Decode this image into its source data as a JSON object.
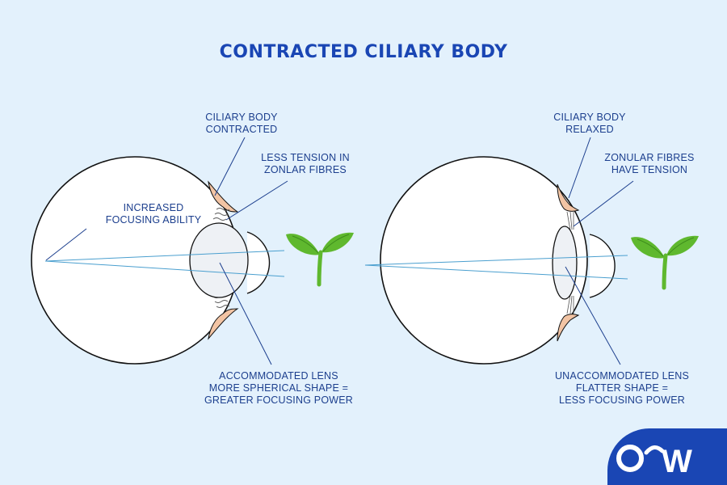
{
  "title": "CONTRACTED CILIARY BODY",
  "left_eye": {
    "ciliary_label": [
      "CILIARY BODY",
      "CONTRACTED"
    ],
    "zonular_label": [
      "LESS TENSION IN",
      "ZONLAR FIBRES"
    ],
    "focus_label": [
      "INCREASED",
      "FOCUSING ABILITY"
    ],
    "lens_label": [
      "ACCOMMODATED LENS",
      "MORE SPHERICAL SHAPE =",
      "GREATER FOCUSING POWER"
    ]
  },
  "right_eye": {
    "ciliary_label": [
      "CILIARY BODY",
      "RELAXED"
    ],
    "zonular_label": [
      "ZONULAR FIBRES",
      "HAVE TENSION"
    ],
    "lens_label": [
      "UNACCOMMODATED LENS",
      "FLATTER SHAPE =",
      "LESS FOCUSING POWER"
    ]
  },
  "logo": {
    "text": "OW",
    "icon": "logo-mark"
  },
  "colors": {
    "background": "#e3f1fc",
    "title": "#1a46b4",
    "label": "#1c3f8e",
    "ray": "#4a9fcf",
    "ciliary": "#f2c4a4",
    "lens": "#eef1f5",
    "plant": "#5fb82e",
    "logo_bg": "#1a46b4"
  }
}
